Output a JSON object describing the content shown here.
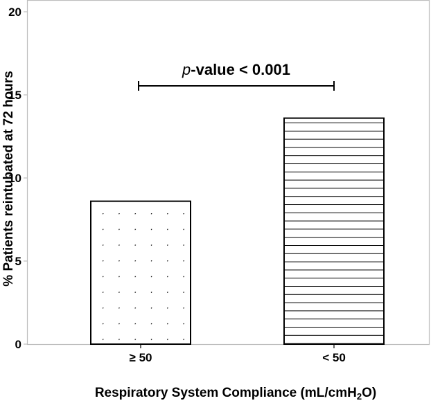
{
  "chart_data": {
    "type": "bar",
    "categories": [
      "≥ 50",
      "< 50"
    ],
    "values": [
      8.6,
      13.6
    ],
    "patterns": [
      "dots",
      "horizontal-lines"
    ],
    "ylabel": "% Patients reintubated at 72 hours",
    "xlabel_main": "Respiratory System Compliance (mL/cmH",
    "xlabel_sub": "2",
    "xlabel_end": "O)",
    "ylim": [
      0,
      20
    ],
    "yticks": [
      "0",
      "5",
      "10",
      "15",
      "20"
    ],
    "grid": false,
    "annotation": {
      "italic": "p",
      "text": "-value < 0.001",
      "spans_categories": [
        "≥ 50",
        "< 50"
      ]
    },
    "colors": {
      "bar_fill": "#ffffff",
      "bar_stroke": "#000000",
      "frame": "#bdbdbd"
    }
  }
}
